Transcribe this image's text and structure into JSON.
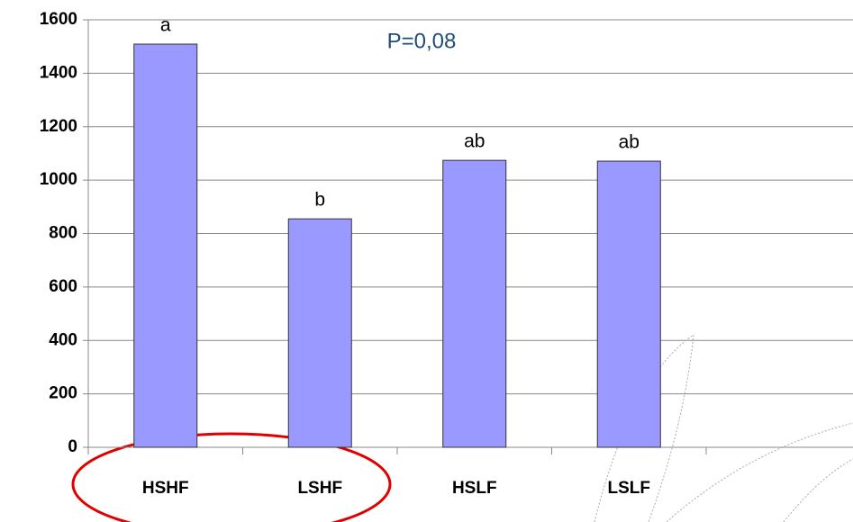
{
  "chart_data": {
    "type": "bar",
    "categories": [
      "HSHF",
      "LSHF",
      "HSLF",
      "LSLF"
    ],
    "values": [
      1509,
      855,
      1074,
      1071
    ],
    "annotations": [
      "a",
      "b",
      "ab",
      "ab"
    ],
    "p_value_text": "P=0,08",
    "color": "#9999ff",
    "ylim": [
      0,
      1600
    ],
    "yticks": [
      0,
      200,
      400,
      600,
      800,
      1000,
      1200,
      1400,
      1600
    ],
    "grid": true
  }
}
